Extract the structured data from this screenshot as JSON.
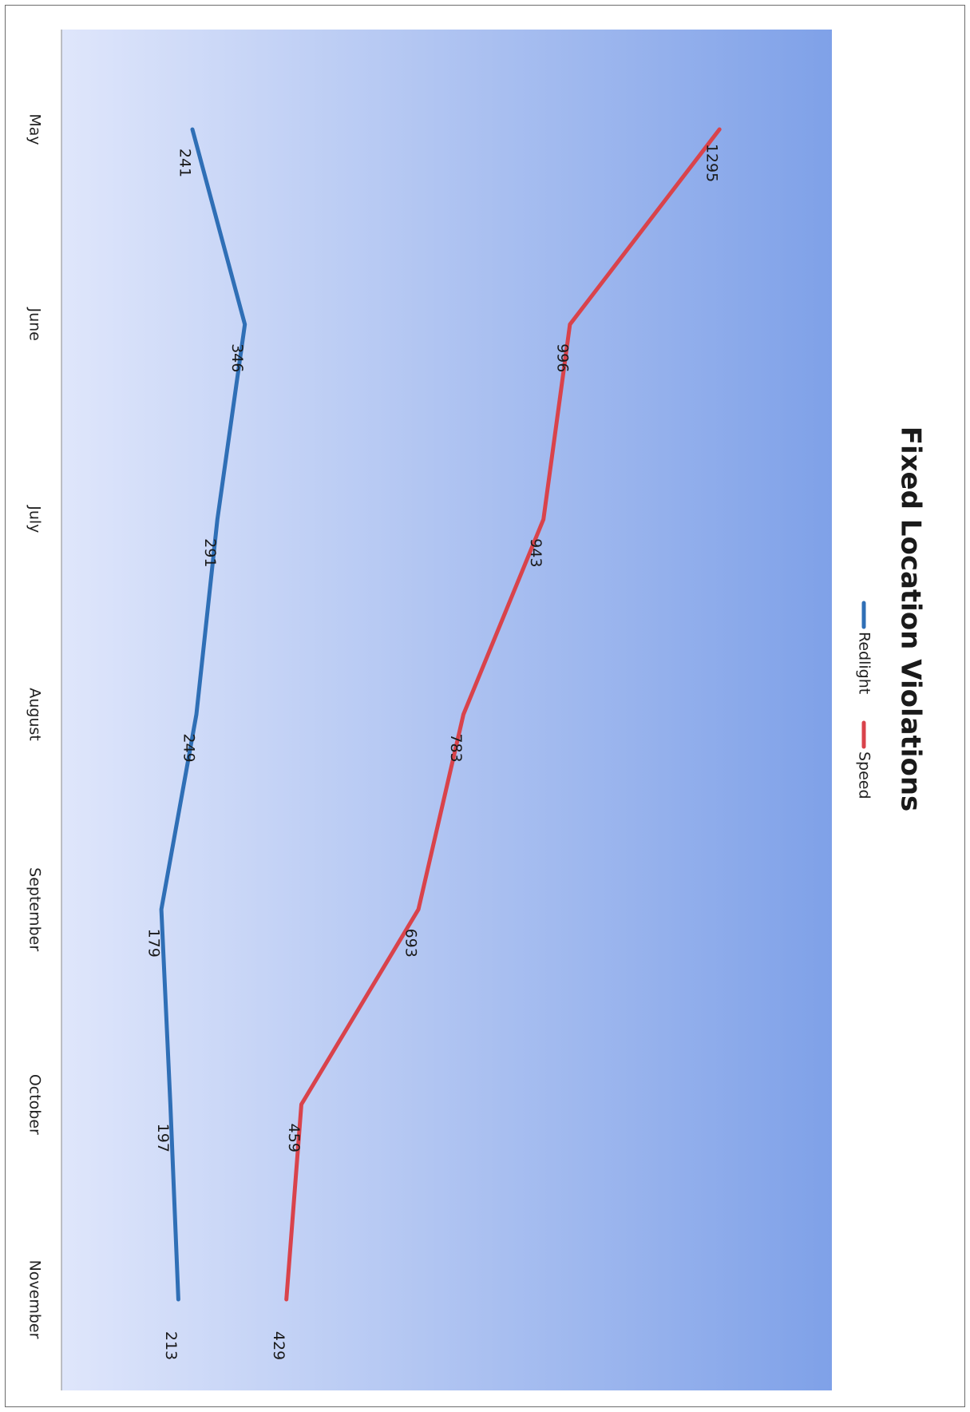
{
  "chart_data": {
    "type": "line",
    "orientation": "rotated-90-clockwise",
    "title": "Fixed Location Violations",
    "categories": [
      "May",
      "June",
      "July",
      "August",
      "September",
      "October",
      "November"
    ],
    "series": [
      {
        "name": "Redlight",
        "color": "#2f6fb6",
        "values": [
          241,
          346,
          291,
          249,
          179,
          197,
          213
        ]
      },
      {
        "name": "Speed",
        "color": "#d9434b",
        "values": [
          1295,
          996,
          943,
          783,
          693,
          459,
          429
        ]
      }
    ],
    "ylim": [
      0,
      1400
    ],
    "grid": false,
    "legend": "top-center",
    "data_labels": true,
    "background": {
      "from": "#dfe6fb",
      "to": "#7fa1e8"
    }
  }
}
